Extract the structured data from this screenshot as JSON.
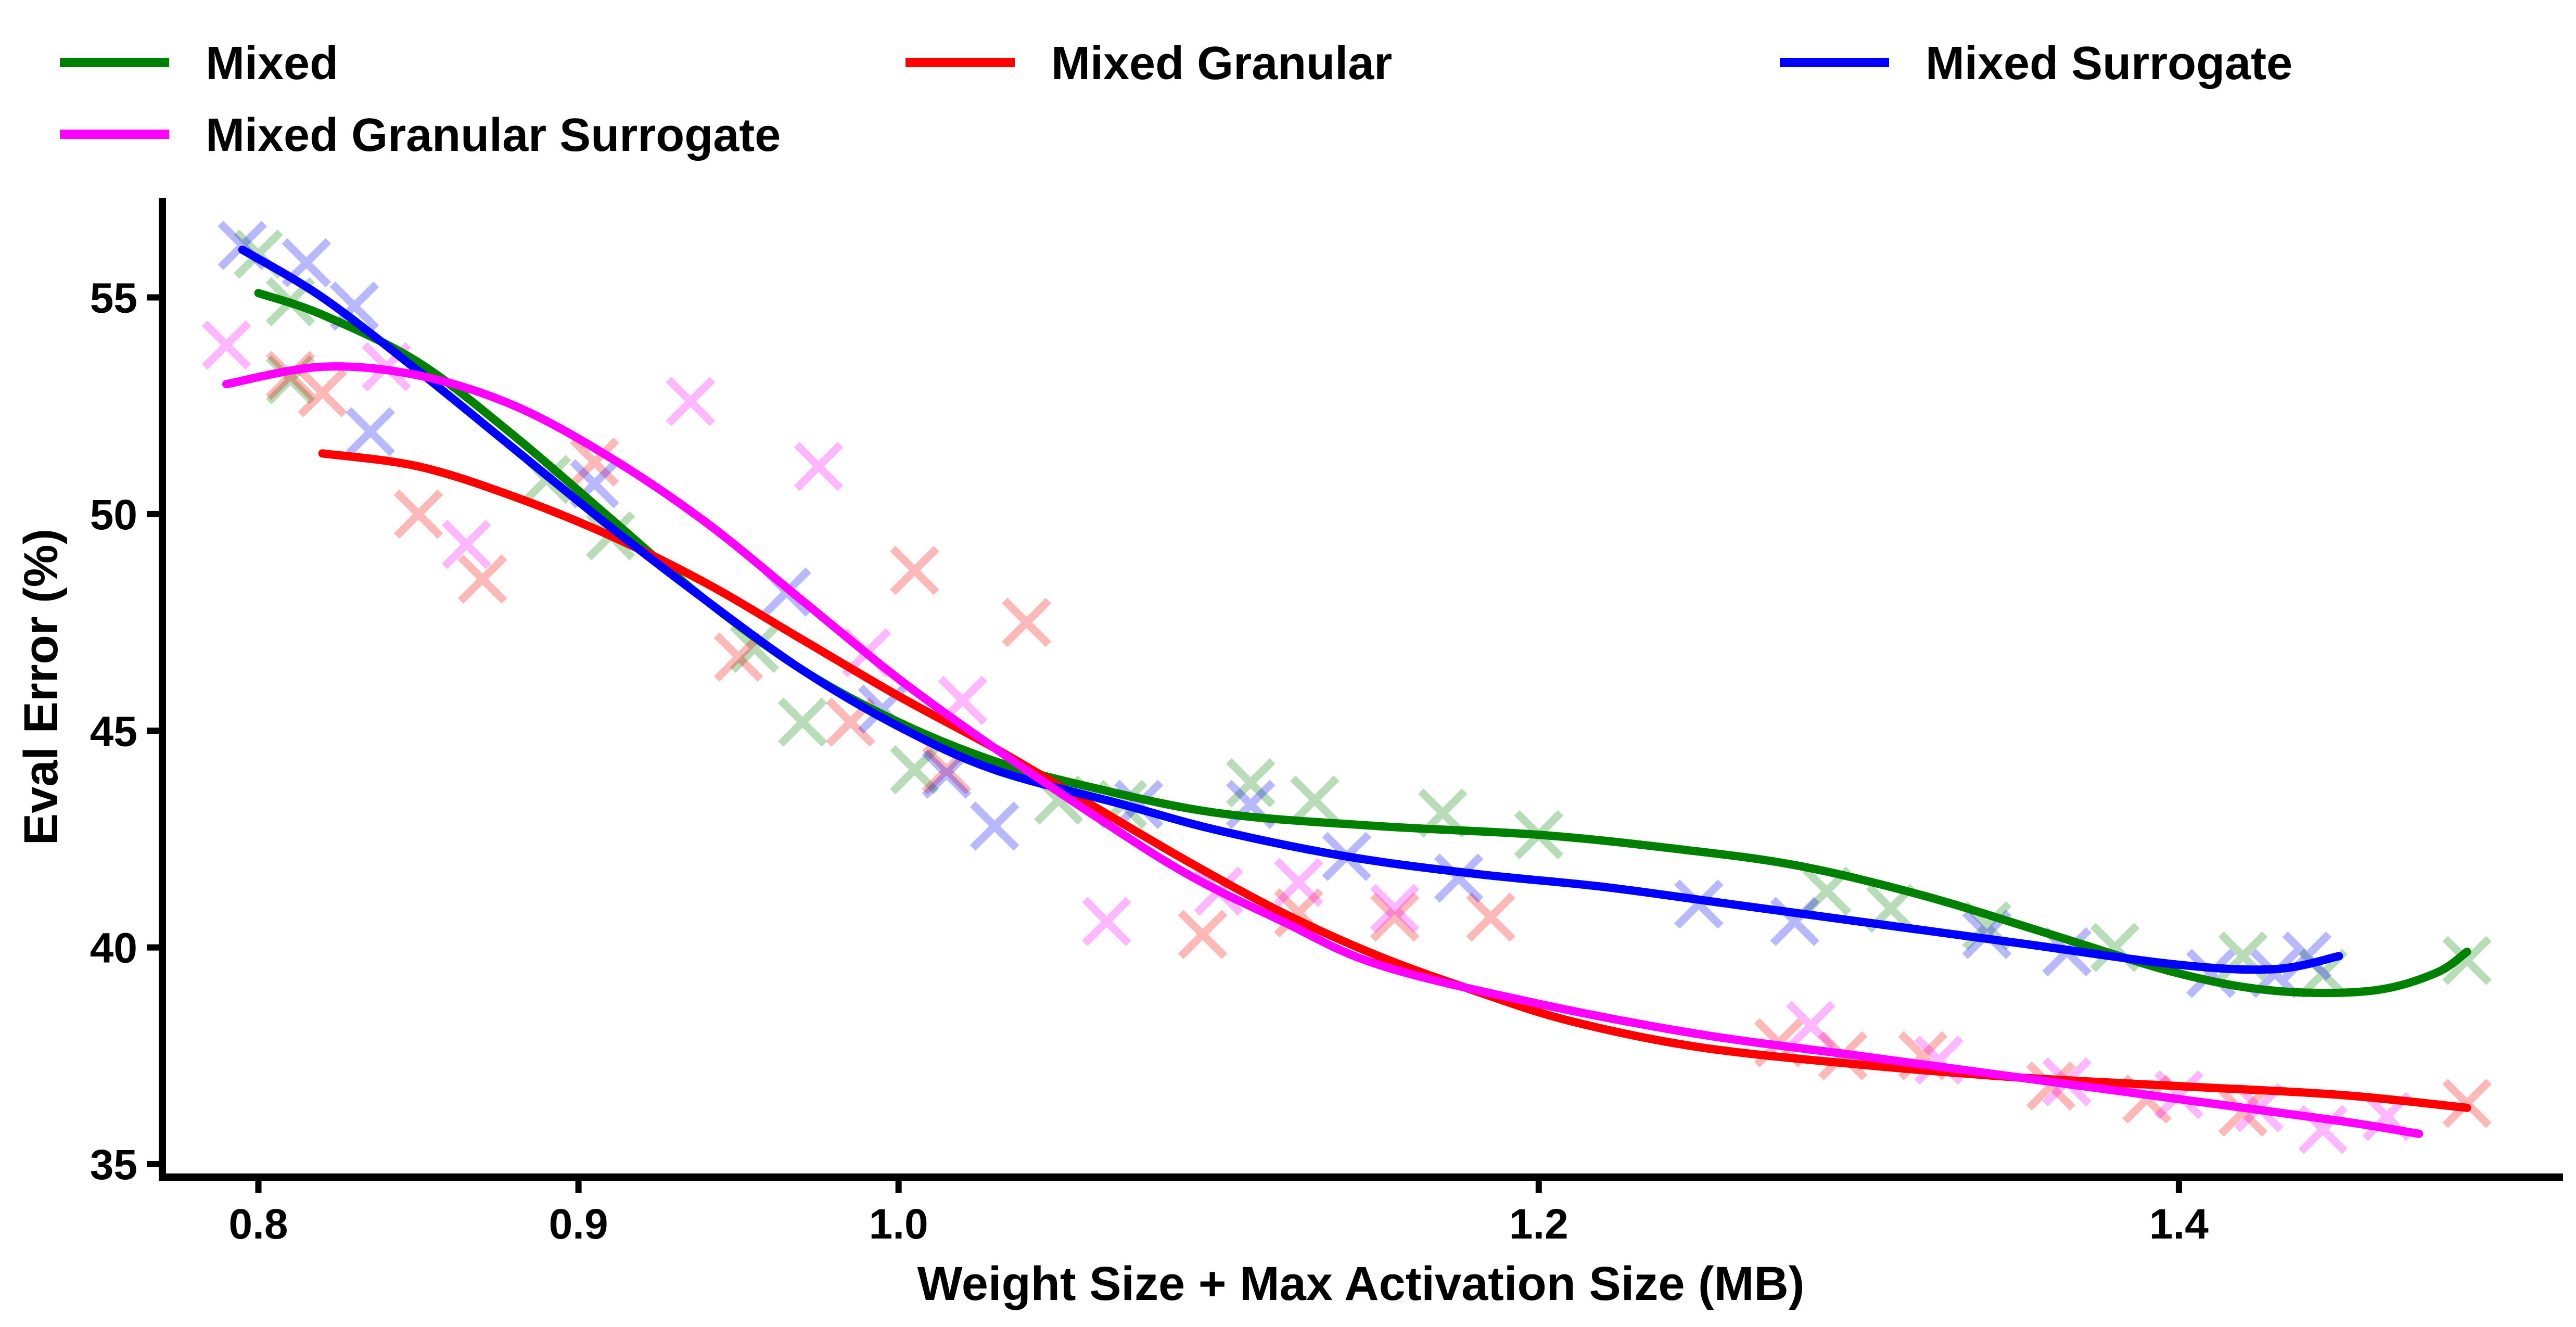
{
  "chart_data": {
    "type": "scatter",
    "xlabel": "Weight Size + Max Activation Size (MB)",
    "ylabel": "Eval Error (%)",
    "xlim": [
      0.77,
      1.52
    ],
    "ylim": [
      34.7,
      57.3
    ],
    "xticks": [
      0.8,
      0.9,
      1.0,
      1.2,
      1.4
    ],
    "yticks": [
      35,
      40,
      45,
      50,
      55
    ],
    "legend_position": "top",
    "grid": false,
    "series": [
      {
        "name": "Mixed",
        "color": "#008000",
        "points": [
          [
            0.8,
            56.0
          ],
          [
            0.81,
            54.9
          ],
          [
            0.81,
            53.1
          ],
          [
            0.89,
            50.8
          ],
          [
            0.91,
            49.5
          ],
          [
            0.955,
            46.9
          ],
          [
            0.97,
            45.2
          ],
          [
            1.005,
            44.1
          ],
          [
            1.05,
            43.4
          ],
          [
            1.07,
            43.3
          ],
          [
            1.11,
            43.8
          ],
          [
            1.13,
            43.4
          ],
          [
            1.17,
            43.1
          ],
          [
            1.2,
            42.6
          ],
          [
            1.29,
            41.3
          ],
          [
            1.31,
            40.9
          ],
          [
            1.34,
            40.5
          ],
          [
            1.38,
            40.0
          ],
          [
            1.42,
            39.8
          ],
          [
            1.445,
            39.4
          ],
          [
            1.49,
            39.7
          ]
        ],
        "curve": [
          [
            0.8,
            55.1
          ],
          [
            0.82,
            54.6
          ],
          [
            0.85,
            53.5
          ],
          [
            0.88,
            51.8
          ],
          [
            0.91,
            49.9
          ],
          [
            0.94,
            48.0
          ],
          [
            0.97,
            46.4
          ],
          [
            1.0,
            45.2
          ],
          [
            1.03,
            44.3
          ],
          [
            1.06,
            43.7
          ],
          [
            1.1,
            43.1
          ],
          [
            1.15,
            42.8
          ],
          [
            1.2,
            42.6
          ],
          [
            1.24,
            42.3
          ],
          [
            1.28,
            41.9
          ],
          [
            1.32,
            41.2
          ],
          [
            1.36,
            40.3
          ],
          [
            1.4,
            39.4
          ],
          [
            1.43,
            39.0
          ],
          [
            1.46,
            39.0
          ],
          [
            1.48,
            39.4
          ],
          [
            1.49,
            39.9
          ]
        ]
      },
      {
        "name": "Mixed Granular",
        "color": "#ff0000",
        "points": [
          [
            0.81,
            53.2
          ],
          [
            0.82,
            52.8
          ],
          [
            0.85,
            50.0
          ],
          [
            0.87,
            48.5
          ],
          [
            0.905,
            51.2
          ],
          [
            0.95,
            46.7
          ],
          [
            0.985,
            45.2
          ],
          [
            1.005,
            48.7
          ],
          [
            1.015,
            44.1
          ],
          [
            1.04,
            47.5
          ],
          [
            1.095,
            40.3
          ],
          [
            1.125,
            40.8
          ],
          [
            1.155,
            40.7
          ],
          [
            1.185,
            40.7
          ],
          [
            1.275,
            37.8
          ],
          [
            1.295,
            37.5
          ],
          [
            1.32,
            37.5
          ],
          [
            1.36,
            36.8
          ],
          [
            1.39,
            36.5
          ],
          [
            1.42,
            36.2
          ],
          [
            1.49,
            36.4
          ]
        ],
        "curve": [
          [
            0.82,
            51.4
          ],
          [
            0.85,
            51.1
          ],
          [
            0.88,
            50.4
          ],
          [
            0.91,
            49.5
          ],
          [
            0.94,
            48.4
          ],
          [
            0.97,
            47.1
          ],
          [
            1.0,
            45.8
          ],
          [
            1.03,
            44.6
          ],
          [
            1.06,
            43.3
          ],
          [
            1.09,
            42.0
          ],
          [
            1.12,
            40.8
          ],
          [
            1.15,
            39.8
          ],
          [
            1.18,
            39.0
          ],
          [
            1.21,
            38.3
          ],
          [
            1.25,
            37.7
          ],
          [
            1.3,
            37.3
          ],
          [
            1.35,
            37.0
          ],
          [
            1.4,
            36.8
          ],
          [
            1.45,
            36.6
          ],
          [
            1.49,
            36.3
          ]
        ]
      },
      {
        "name": "Mixed Surrogate",
        "color": "#0000ff",
        "points": [
          [
            0.795,
            56.2
          ],
          [
            0.815,
            55.8
          ],
          [
            0.83,
            54.8
          ],
          [
            0.835,
            51.9
          ],
          [
            0.905,
            50.7
          ],
          [
            0.965,
            48.2
          ],
          [
            0.995,
            45.5
          ],
          [
            1.015,
            44.0
          ],
          [
            1.03,
            42.8
          ],
          [
            1.075,
            43.3
          ],
          [
            1.11,
            43.3
          ],
          [
            1.14,
            42.1
          ],
          [
            1.175,
            41.6
          ],
          [
            1.25,
            41.0
          ],
          [
            1.28,
            40.6
          ],
          [
            1.34,
            40.3
          ],
          [
            1.365,
            39.9
          ],
          [
            1.41,
            39.4
          ],
          [
            1.43,
            39.4
          ],
          [
            1.44,
            39.8
          ]
        ],
        "curve": [
          [
            0.795,
            56.1
          ],
          [
            0.82,
            55.0
          ],
          [
            0.85,
            53.3
          ],
          [
            0.88,
            51.5
          ],
          [
            0.91,
            49.7
          ],
          [
            0.94,
            48.0
          ],
          [
            0.97,
            46.4
          ],
          [
            1.0,
            45.1
          ],
          [
            1.03,
            44.1
          ],
          [
            1.07,
            43.3
          ],
          [
            1.1,
            42.7
          ],
          [
            1.14,
            42.1
          ],
          [
            1.18,
            41.7
          ],
          [
            1.22,
            41.4
          ],
          [
            1.26,
            41.0
          ],
          [
            1.3,
            40.6
          ],
          [
            1.35,
            40.1
          ],
          [
            1.4,
            39.6
          ],
          [
            1.43,
            39.5
          ],
          [
            1.45,
            39.8
          ]
        ]
      },
      {
        "name": "Mixed Granular Surrogate",
        "color": "#ff00ff",
        "points": [
          [
            0.79,
            53.9
          ],
          [
            0.84,
            53.4
          ],
          [
            0.865,
            49.3
          ],
          [
            0.935,
            52.6
          ],
          [
            0.975,
            51.1
          ],
          [
            0.99,
            46.8
          ],
          [
            1.02,
            45.7
          ],
          [
            1.065,
            40.6
          ],
          [
            1.1,
            41.3
          ],
          [
            1.125,
            41.5
          ],
          [
            1.155,
            40.9
          ],
          [
            1.285,
            38.2
          ],
          [
            1.325,
            37.4
          ],
          [
            1.365,
            36.9
          ],
          [
            1.4,
            36.6
          ],
          [
            1.425,
            36.3
          ],
          [
            1.445,
            35.8
          ],
          [
            1.465,
            36.1
          ]
        ],
        "curve": [
          [
            0.79,
            53.0
          ],
          [
            0.82,
            53.4
          ],
          [
            0.85,
            53.2
          ],
          [
            0.88,
            52.5
          ],
          [
            0.91,
            51.3
          ],
          [
            0.94,
            49.8
          ],
          [
            0.97,
            48.0
          ],
          [
            1.0,
            46.2
          ],
          [
            1.03,
            44.6
          ],
          [
            1.06,
            43.1
          ],
          [
            1.09,
            41.7
          ],
          [
            1.12,
            40.6
          ],
          [
            1.15,
            39.6
          ],
          [
            1.2,
            38.7
          ],
          [
            1.25,
            38.0
          ],
          [
            1.3,
            37.5
          ],
          [
            1.35,
            37.0
          ],
          [
            1.4,
            36.5
          ],
          [
            1.45,
            36.0
          ],
          [
            1.475,
            35.7
          ]
        ]
      }
    ]
  }
}
